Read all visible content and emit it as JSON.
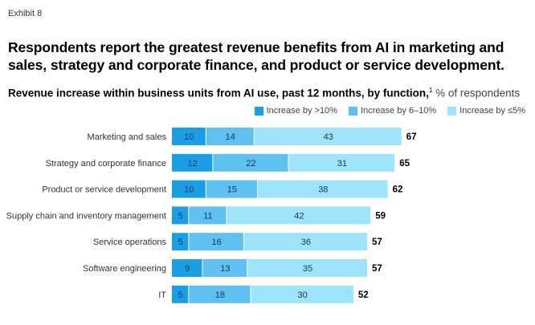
{
  "exhibit": "Exhibit 8",
  "title": "Respondents report the greatest revenue benefits from AI in marketing and sales, strategy and corporate finance, and product or service development.",
  "subtitle": {
    "bold": "Revenue increase within business units from AI use, past 12 months, by function,",
    "footnote": "1",
    "unit": " % of respondents"
  },
  "chart_data": {
    "type": "bar",
    "orientation": "horizontal",
    "stacked": true,
    "title": "Revenue increase within business units from AI use, past 12 months, by function, % of respondents",
    "categories": [
      "Marketing and sales",
      "Strategy and corporate finance",
      "Product or service development",
      "Supply chain and inventory management",
      "Service operations",
      "Software engineering",
      "IT"
    ],
    "series": [
      {
        "name": "Increase by >10%",
        "color": "#1a9fe6",
        "values": [
          10,
          12,
          10,
          5,
          5,
          9,
          5
        ]
      },
      {
        "name": "Increase by 6–10%",
        "color": "#5fc1f2",
        "values": [
          14,
          22,
          15,
          11,
          16,
          13,
          18
        ]
      },
      {
        "name": "Increase by ≤5%",
        "color": "#9de4fc",
        "values": [
          43,
          31,
          38,
          42,
          36,
          35,
          30
        ]
      }
    ],
    "totals": [
      67,
      65,
      62,
      59,
      57,
      57,
      52
    ],
    "legend": "top-right",
    "grid": false
  }
}
